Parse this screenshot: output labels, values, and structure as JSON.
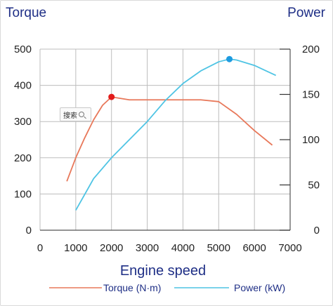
{
  "chart_data": {
    "type": "line",
    "title": "",
    "left_axis_title": "Torque",
    "right_axis_title": "Power",
    "xlabel": "Engine speed",
    "xlim": [
      0,
      7000
    ],
    "x_ticks": [
      "0",
      "1000",
      "2000",
      "3000",
      "4000",
      "5000",
      "6000",
      "7000"
    ],
    "ylim_left": [
      0,
      500
    ],
    "y_ticks_left": [
      "0",
      "100",
      "200",
      "300",
      "400",
      "500"
    ],
    "ylim_right": [
      0,
      200
    ],
    "y_ticks_right": [
      "0",
      "50",
      "100",
      "150",
      "200"
    ],
    "grid": true,
    "legend_position": "bottom",
    "series": [
      {
        "name": "Torque  (N·m)",
        "axis": "left",
        "color": "#e8785a",
        "x": [
          750,
          1000,
          1250,
          1500,
          1750,
          2000,
          2500,
          3000,
          3500,
          4000,
          4500,
          5000,
          5500,
          6000,
          6500
        ],
        "y": [
          135,
          200,
          255,
          305,
          345,
          368,
          360,
          360,
          360,
          360,
          360,
          355,
          320,
          275,
          235
        ],
        "marker": {
          "x": 2000,
          "y": 368,
          "color": "#e21b1b"
        }
      },
      {
        "name": "Power (kW)",
        "axis": "right",
        "color": "#4fc4e4",
        "x": [
          1000,
          1500,
          2000,
          2500,
          3000,
          3500,
          4000,
          4500,
          5000,
          5300,
          5500,
          6000,
          6600
        ],
        "y": [
          22,
          57,
          80,
          100,
          120,
          143,
          162,
          176,
          186,
          189,
          188,
          182,
          171
        ],
        "marker": {
          "x": 5300,
          "y": 189,
          "color": "#1e9be0"
        }
      }
    ]
  },
  "tooltip": {
    "text": "搜索",
    "icon": "search-icon"
  }
}
